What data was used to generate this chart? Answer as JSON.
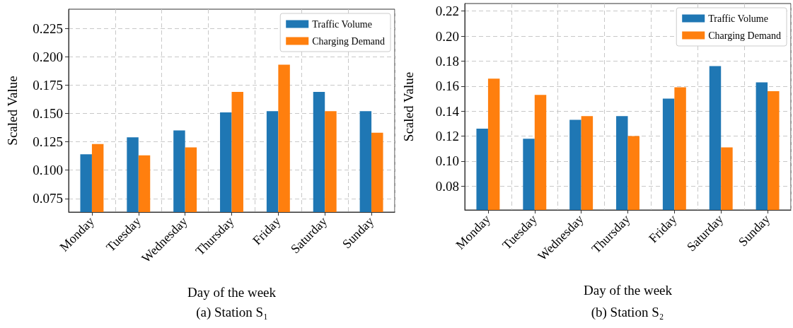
{
  "chart_data": [
    {
      "type": "bar",
      "title": "(a) Station S₁",
      "xlabel": "Day of the week",
      "ylabel": "Scaled Value",
      "categories": [
        "Monday",
        "Tuesday",
        "Wednesday",
        "Thursday",
        "Friday",
        "Saturday",
        "Sunday"
      ],
      "series": [
        {
          "name": "Traffic Volume",
          "color": "#1f77b4",
          "values": [
            0.114,
            0.129,
            0.135,
            0.151,
            0.152,
            0.169,
            0.152
          ]
        },
        {
          "name": "Charging Demand",
          "color": "#ff7f0e",
          "values": [
            0.123,
            0.113,
            0.12,
            0.169,
            0.193,
            0.152,
            0.133
          ]
        }
      ],
      "ylim": [
        0.063,
        0.242
      ],
      "yticks": [
        0.075,
        {
          "value": 0.1,
          "label": "0.100"
        },
        0.125,
        {
          "value": 0.15,
          "label": "0.150"
        },
        0.175,
        {
          "value": 0.2,
          "label": "0.200"
        },
        0.225
      ],
      "grid": true,
      "legend": "top right"
    },
    {
      "type": "bar",
      "title": "(b) Station S₂",
      "xlabel": "Day of the week",
      "ylabel": "Scaled Value",
      "categories": [
        "Monday",
        "Tuesday",
        "Wednesday",
        "Thursday",
        "Friday",
        "Saturday",
        "Sunday"
      ],
      "series": [
        {
          "name": "Traffic Volume",
          "color": "#1f77b4",
          "values": [
            0.126,
            0.118,
            0.133,
            0.136,
            0.15,
            0.176,
            0.163
          ]
        },
        {
          "name": "Charging Demand",
          "color": "#ff7f0e",
          "values": [
            0.166,
            0.153,
            0.136,
            0.12,
            0.159,
            0.111,
            0.156
          ]
        }
      ],
      "ylim": [
        0.061,
        0.226
      ],
      "yticks": [
        0.08,
        {
          "value": 0.1,
          "label": "0.10"
        },
        0.12,
        0.14,
        0.16,
        0.18,
        {
          "value": 0.2,
          "label": "0.20"
        },
        0.22
      ],
      "grid": true,
      "legend": "top right"
    }
  ]
}
